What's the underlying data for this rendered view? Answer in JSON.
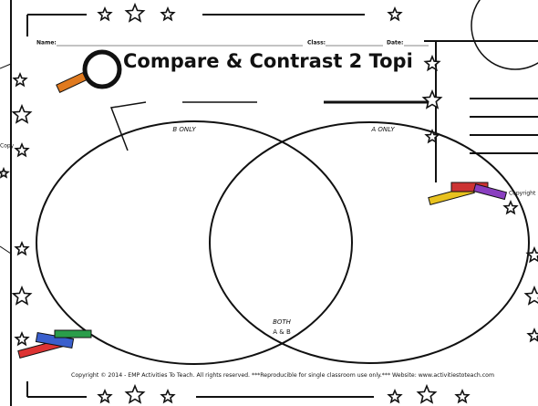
{
  "header": {
    "name_label": "Name:",
    "class_label": "Class:",
    "date_label": "Date:",
    "title": "Compare & Contrast 2 Topi"
  },
  "venn": {
    "left_label": "B ONLY",
    "right_label": "A ONLY",
    "overlap_label": [
      "BOTH",
      "A & B"
    ]
  },
  "footer": {
    "copyright": "Copyright © 2014 - EMP Activities To Teach. All rights reserved.   ***Reproducible for single classroom use only.*** Website: www.activitiestoteach.com"
  },
  "side_pages": {
    "left_text": "Copy",
    "right_text": "Copyright"
  }
}
